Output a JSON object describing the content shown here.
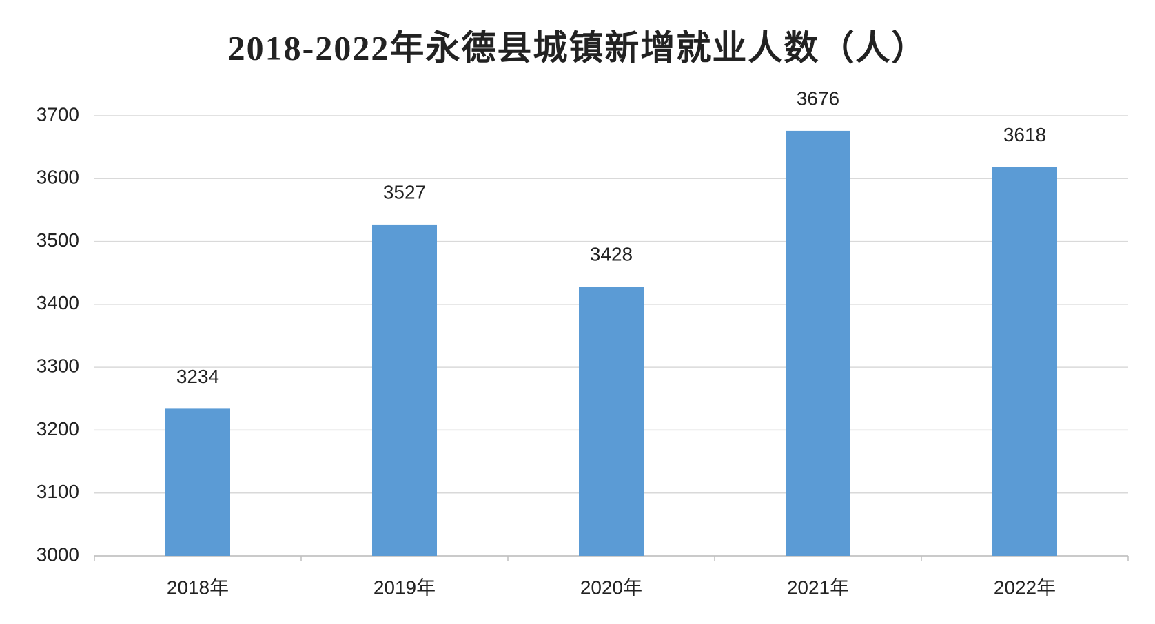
{
  "chart_data": {
    "type": "bar",
    "title": "2018-2022年永德县城镇新增就业人数（人）",
    "categories": [
      "2018年",
      "2019年",
      "2020年",
      "2021年",
      "2022年"
    ],
    "values": [
      3234,
      3527,
      3428,
      3676,
      3618
    ],
    "color": "#5b9bd5",
    "ylim": [
      3000,
      3700
    ],
    "yticks": [
      3000,
      3100,
      3200,
      3300,
      3400,
      3500,
      3600,
      3700
    ],
    "grid": true
  }
}
